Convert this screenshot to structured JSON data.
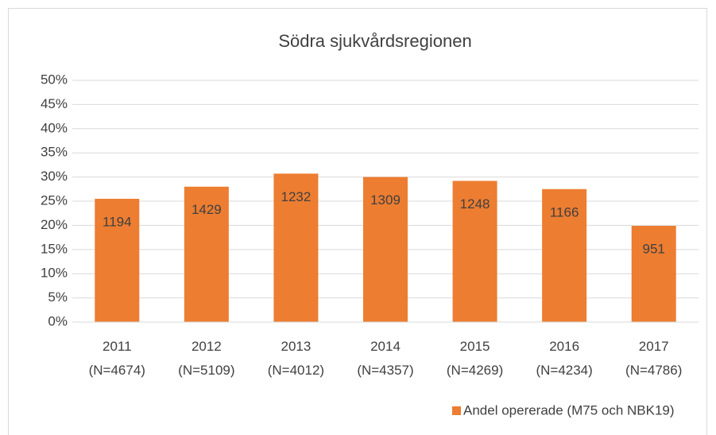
{
  "chart_data": {
    "type": "bar",
    "title": "Södra sjukvårdsregionen",
    "categories": [
      [
        "2011",
        "(N=4674)"
      ],
      [
        "2012",
        "(N=5109)"
      ],
      [
        "2013",
        "(N=4012)"
      ],
      [
        "2014",
        "(N=4357)"
      ],
      [
        "2015",
        "(N=4269)"
      ],
      [
        "2016",
        "(N=4234)"
      ],
      [
        "2017",
        "(N=4786)"
      ]
    ],
    "series": [
      {
        "name": "Andel opererade (M75 och NBK19)",
        "color": "#ed7d31",
        "values": [
          25.5,
          28.0,
          30.7,
          30.0,
          29.2,
          27.5,
          19.9
        ],
        "counts": [
          1194,
          1429,
          1232,
          1309,
          1248,
          1166,
          951
        ]
      }
    ],
    "ylim": [
      0,
      50
    ],
    "yticks": [
      {
        "value": 0,
        "label": "0%"
      },
      {
        "value": 5,
        "label": "5%"
      },
      {
        "value": 10,
        "label": "10%"
      },
      {
        "value": 15,
        "label": "15%"
      },
      {
        "value": 20,
        "label": "20%"
      },
      {
        "value": 25,
        "label": "25%"
      },
      {
        "value": 30,
        "label": "30%"
      },
      {
        "value": 35,
        "label": "35%"
      },
      {
        "value": 40,
        "label": "40%"
      },
      {
        "value": 45,
        "label": "45%"
      },
      {
        "value": 50,
        "label": "50%"
      }
    ],
    "grid": true,
    "legend": "bottom"
  }
}
